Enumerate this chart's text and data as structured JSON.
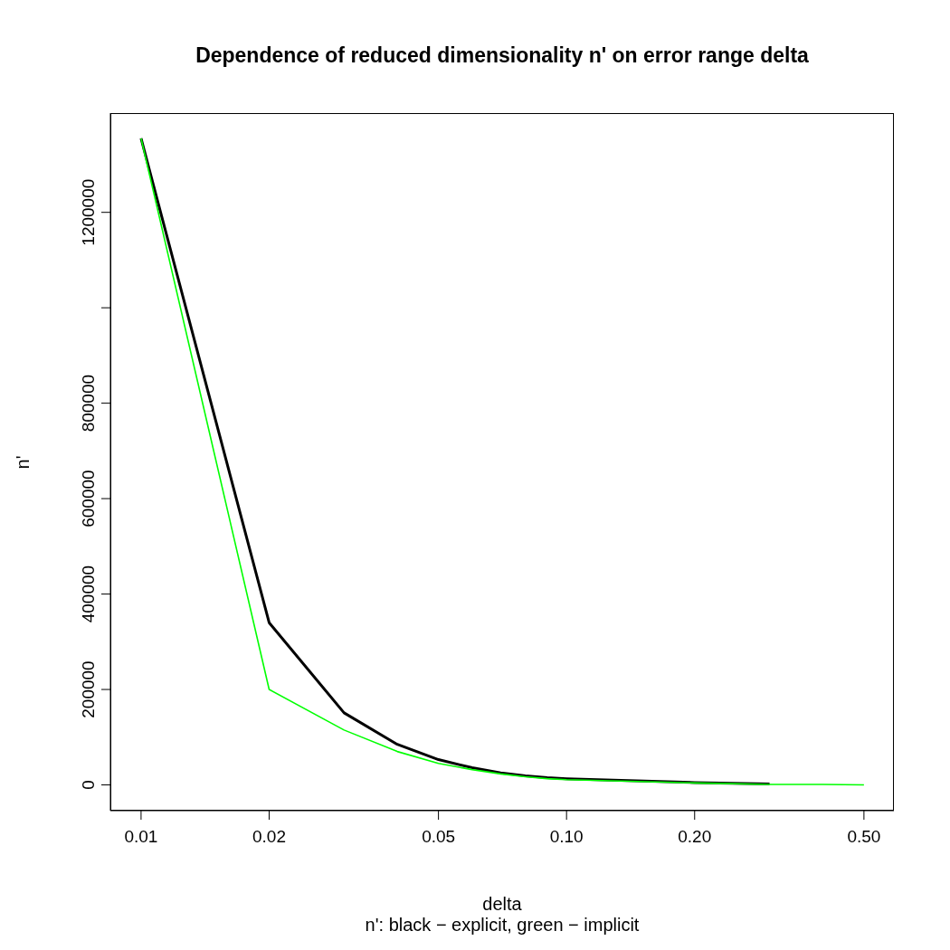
{
  "chart_data": {
    "type": "line",
    "title": "Dependence of reduced dimensionality n' on error range delta",
    "xlabel": "delta",
    "ylabel": "n'",
    "annotations": [
      "n': black − explicit, green − implicit"
    ],
    "x": [
      0.01,
      0.02,
      0.03,
      0.04,
      0.05,
      0.06,
      0.07,
      0.08,
      0.09,
      0.1,
      0.2,
      0.3,
      0.4,
      0.5
    ],
    "series": [
      {
        "color": "#000000",
        "values": [
          1355000,
          340000,
          151000,
          85000,
          53000,
          36000,
          25000,
          19000,
          15000,
          13000,
          5000,
          2000,
          null,
          null
        ]
      },
      {
        "color": "#00ff00",
        "values": [
          1355000,
          200000,
          115000,
          70000,
          45000,
          32000,
          23000,
          17000,
          13000,
          11000,
          4000,
          1000,
          1000,
          0
        ]
      }
    ],
    "log": "x",
    "xlim": [
      0.00847,
      0.588
    ],
    "xticks": [
      {
        "value": 0.01,
        "label": "0.01"
      },
      {
        "value": 0.02,
        "label": "0.02"
      },
      {
        "value": 0.05,
        "label": "0.05"
      },
      {
        "value": 0.1,
        "label": "0.10"
      },
      {
        "value": 0.2,
        "label": "0.20"
      },
      {
        "value": 0.5,
        "label": "0.50"
      }
    ],
    "ylim": [
      -54000,
      1408000
    ],
    "yticks": [
      0,
      200000,
      400000,
      600000,
      800000,
      {
        "value": 1000000,
        "label": null
      },
      1200000
    ],
    "grid": false,
    "marker": "none",
    "line_style": "solid"
  }
}
